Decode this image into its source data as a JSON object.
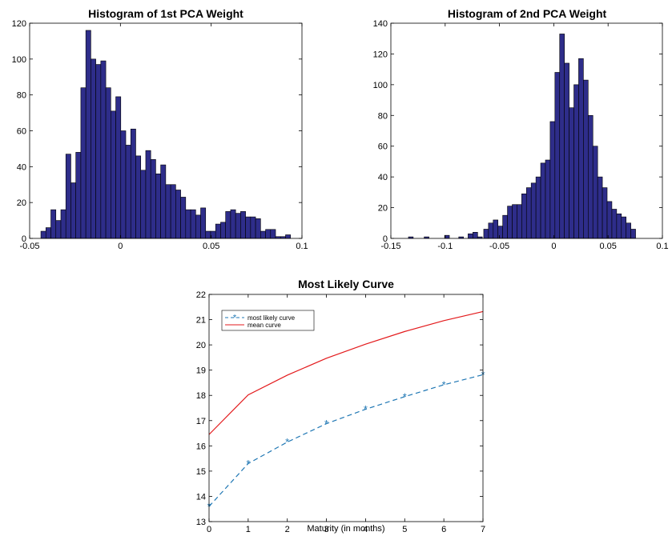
{
  "chart_data": [
    {
      "type": "bar",
      "title": "Histogram of 1st PCA Weight",
      "xlabel": "",
      "ylabel": "",
      "xlim": [
        -0.05,
        0.1
      ],
      "ylim": [
        0,
        120
      ],
      "xticks": [
        "-0.05",
        "0",
        "0.05",
        "0.1"
      ],
      "xtick_values": [
        -0.05,
        0,
        0.05,
        0.1
      ],
      "yticks": [
        "0",
        "20",
        "40",
        "60",
        "80",
        "100",
        "120"
      ],
      "ytick_values": [
        0,
        20,
        40,
        60,
        80,
        100,
        120
      ],
      "bin_start": -0.0438,
      "bin_width": 0.00275,
      "values": [
        4,
        6,
        16,
        10,
        16,
        47,
        31,
        48,
        84,
        116,
        100,
        97,
        99,
        84,
        71,
        79,
        60,
        52,
        61,
        46,
        38,
        49,
        44,
        36,
        41,
        30,
        30,
        27,
        23,
        16,
        16,
        13,
        17,
        4,
        4,
        8,
        9,
        15,
        16,
        14,
        15,
        12,
        12,
        11,
        4,
        5,
        5,
        1,
        1,
        2
      ],
      "bar_color": "#2e2d8a"
    },
    {
      "type": "bar",
      "title": "Histogram of 2nd PCA Weight",
      "xlabel": "",
      "ylabel": "",
      "xlim": [
        -0.15,
        0.1
      ],
      "ylim": [
        0,
        140
      ],
      "xticks": [
        "-0.15",
        "-0.1",
        "-0.05",
        "0",
        "0.05",
        "0.1"
      ],
      "xtick_values": [
        -0.15,
        -0.1,
        -0.05,
        0,
        0.05,
        0.1
      ],
      "yticks": [
        "0",
        "20",
        "40",
        "60",
        "80",
        "100",
        "120",
        "140"
      ],
      "ytick_values": [
        0,
        20,
        40,
        60,
        80,
        100,
        120,
        140
      ],
      "bin_start": -0.0645,
      "bin_width": 0.00437,
      "values": [
        6,
        10,
        12,
        8,
        15,
        21,
        22,
        22,
        29,
        33,
        36,
        40,
        49,
        51,
        76,
        108,
        133,
        114,
        85,
        100,
        117,
        103,
        80,
        60,
        40,
        33,
        24,
        19,
        16,
        14,
        10,
        6
      ],
      "extra_bars": [
        {
          "x": -0.1338,
          "value": 1
        },
        {
          "x": -0.1193,
          "value": 1
        },
        {
          "x": -0.1005,
          "value": 2
        },
        {
          "x": -0.0875,
          "value": 1
        },
        {
          "x": -0.0789,
          "value": 3
        },
        {
          "x": -0.0745,
          "value": 4
        },
        {
          "x": -0.0702,
          "value": 1
        }
      ],
      "bar_color": "#2e2d8a"
    },
    {
      "type": "line",
      "title": "Most Likely Curve",
      "xlabel": "Maturity (in months)",
      "ylabel": "",
      "xlim": [
        0,
        7
      ],
      "ylim": [
        13,
        22
      ],
      "xticks": [
        "0",
        "1",
        "2",
        "3",
        "4",
        "5",
        "6",
        "7"
      ],
      "xtick_values": [
        0,
        1,
        2,
        3,
        4,
        5,
        6,
        7
      ],
      "yticks": [
        "13",
        "14",
        "15",
        "16",
        "17",
        "18",
        "19",
        "20",
        "21",
        "22"
      ],
      "ytick_values": [
        13,
        14,
        15,
        16,
        17,
        18,
        19,
        20,
        21,
        22
      ],
      "legend_placement": "top-left",
      "x": [
        0,
        1,
        2,
        3,
        4,
        5,
        6,
        7
      ],
      "series": [
        {
          "name": "most likely curve",
          "values": [
            13.6,
            15.3,
            16.15,
            16.88,
            17.45,
            17.95,
            18.42,
            18.82
          ],
          "color": "#1f77b4",
          "style": "dashed",
          "marker": "asterisk"
        },
        {
          "name": "mean curve",
          "values": [
            16.45,
            18.02,
            18.8,
            19.47,
            20.03,
            20.53,
            20.96,
            21.32
          ],
          "color": "#e31a1c",
          "style": "solid",
          "marker": "none"
        }
      ]
    }
  ]
}
